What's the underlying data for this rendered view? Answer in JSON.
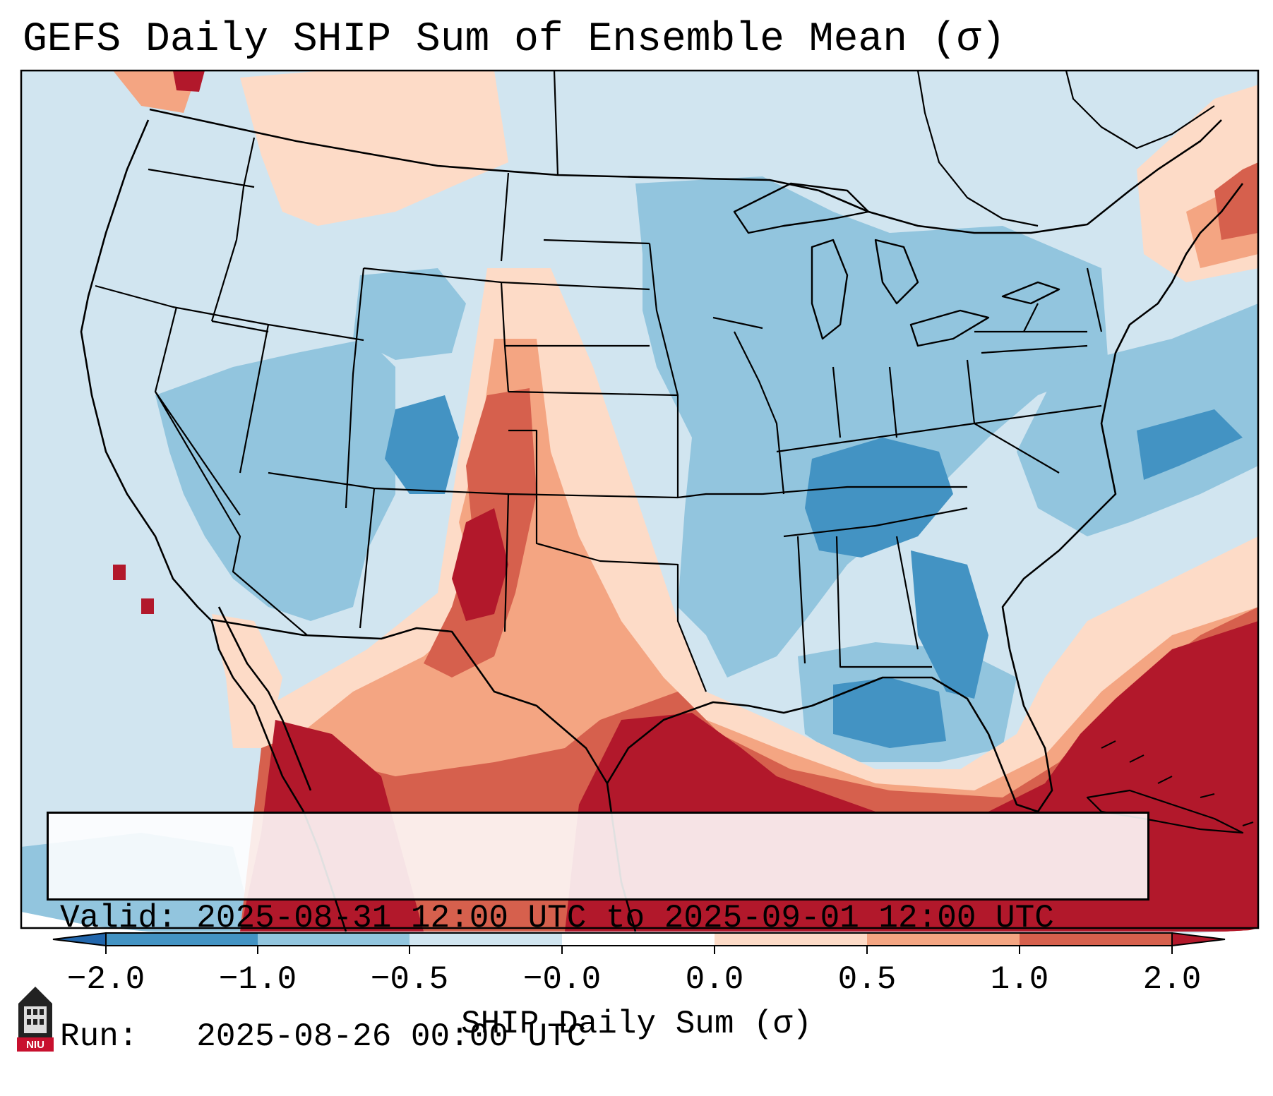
{
  "title": "GEFS Daily SHIP Sum of Ensemble Mean (σ)",
  "info": {
    "valid_label": "Valid:",
    "valid_value": "2025-08-31 12:00 UTC to 2025-09-01 12:00 UTC",
    "run_label": "Run:",
    "run_value": "2025-08-26 00:00 UTC"
  },
  "colorbar": {
    "label": "SHIP Daily Sum (σ)",
    "ticks": [
      "−2.0",
      "−1.0",
      "−0.5",
      "−0.0",
      "0.0",
      "0.5",
      "1.0",
      "2.0"
    ],
    "colors": [
      "#4393c3",
      "#92c5de",
      "#d1e5f0",
      "#fddbc7",
      "#f4a582",
      "#d6604d",
      "#b2182b"
    ],
    "extend_low_color": "#2166ac",
    "extend_high_color": "#b2182b"
  },
  "logo_text": "NIU",
  "map": {
    "projection": "Lambert conformal, CONUS",
    "background_anomaly_sigma": -0.25,
    "regions": [
      {
        "name": "Gulf of Mexico / Southeast Mexico",
        "sigma": 2.0
      },
      {
        "name": "Western Atlantic / Caribbean",
        "sigma": 2.0
      },
      {
        "name": "New Mexico / West Texas",
        "sigma": 1.2
      },
      {
        "name": "Northeast Texas / Gulf coast fringe",
        "sigma": 0.7
      },
      {
        "name": "Northern Maine / Canadian Maritimes",
        "sigma": 0.6
      },
      {
        "name": "Northern Rockies",
        "sigma": 0.3
      },
      {
        "name": "Tennessee Valley / Kentucky",
        "sigma": -1.3
      },
      {
        "name": "Eastern Gulf south of Florida panhandle",
        "sigma": -1.2
      },
      {
        "name": "Western Colorado / Utah",
        "sigma": -1.1
      },
      {
        "name": "Midwest / Ohio Valley",
        "sigma": -0.7
      },
      {
        "name": "Southwest deserts",
        "sigma": -0.7
      },
      {
        "name": "Northern Plains",
        "sigma": -0.3
      }
    ]
  }
}
